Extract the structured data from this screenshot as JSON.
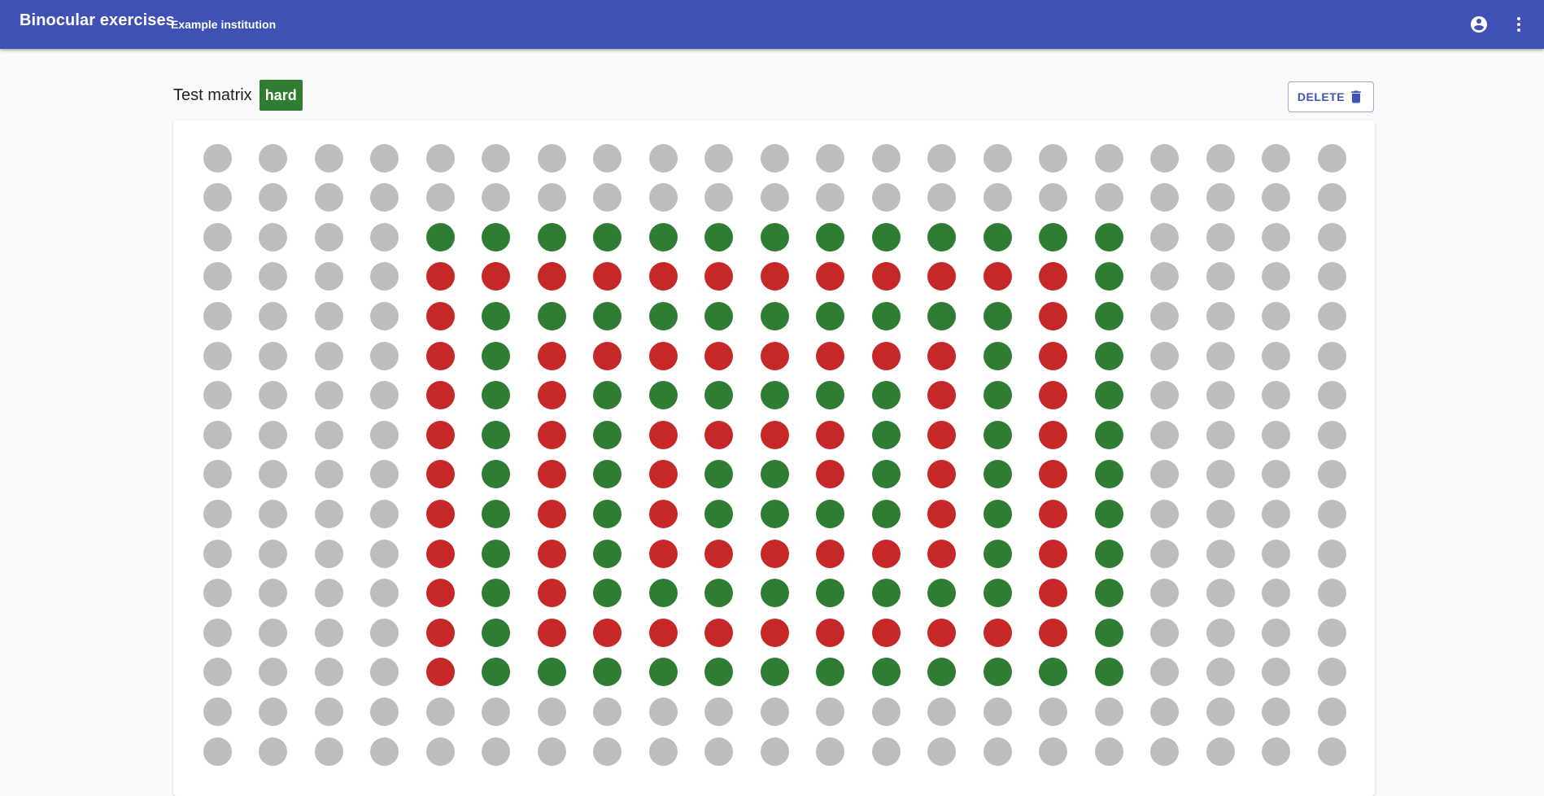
{
  "app": {
    "title": "Binocular exercises",
    "institution": "Example institution"
  },
  "icons": {
    "account": "account-circle-icon",
    "more": "more-vert-icon",
    "delete": "trash-icon"
  },
  "page": {
    "title": "Test matrix",
    "difficulty": "hard",
    "delete_label": "DELETE"
  },
  "colors": {
    "primary": "#3f51b5",
    "badge": "#2e7d32",
    "G": "#2e7d32",
    "R": "#c62828",
    "N": "#bdbdbd"
  },
  "matrix": {
    "rows": 16,
    "cols": 21,
    "legend": {
      "N": "neutral",
      "G": "green",
      "R": "red"
    },
    "grid": [
      "NNNNNNNNNNNNNNNNNNNNN",
      "NNNNNNNNNNNNNNNNNNNNN",
      "NNNNGGGGGGGGGGGGGNNNN",
      "NNNNRRRRRRRRRRRRGNNNN",
      "NNNNRGGGGGGGGGGRGNNNN",
      "NNNNRGRRRRRRRRGRGNNNN",
      "NNNNRGRGGGGGGRGRGNNNN",
      "NNNNRGRGRRRRGRGRGNNNN",
      "NNNNRGRGRGGRGRGRGNNNN",
      "NNNNRGRGRGGGGRGRGNNNN",
      "NNNNRGRGRRRRRRGRGNNNN",
      "NNNNRGRGGGGGGGGRGNNNN",
      "NNNNRGRRRRRRRRRRGNNNN",
      "NNNNRGGGGGGGGGGGGNNNN",
      "NNNNNNNNNNNNNNNNNNNNN",
      "NNNNNNNNNNNNNNNNNNNNN"
    ]
  }
}
